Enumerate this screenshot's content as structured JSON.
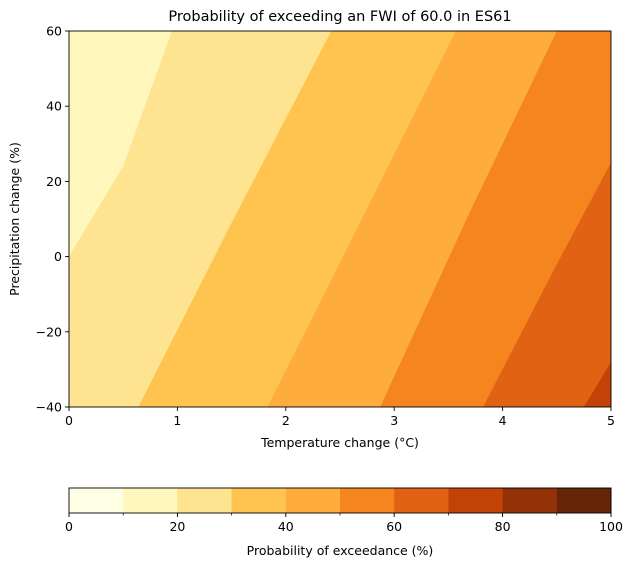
{
  "chart_data": {
    "type": "contourf",
    "title": "Probability of exceeding an FWI of 60.0 in ES61",
    "xlabel": "Temperature change (°C)",
    "ylabel": "Precipitation change (%)",
    "xlim": [
      0,
      5
    ],
    "ylim": [
      -40,
      60
    ],
    "x_ticks": [
      0,
      1,
      2,
      3,
      4,
      5
    ],
    "y_ticks": [
      -40,
      -20,
      0,
      20,
      40,
      60
    ],
    "x_tick_labels": [
      "0",
      "1",
      "2",
      "3",
      "4",
      "5"
    ],
    "y_tick_labels": [
      "−40",
      "−20",
      "0",
      "20",
      "40",
      "60"
    ],
    "levels": [
      0,
      10,
      20,
      30,
      40,
      50,
      60,
      70,
      80,
      90,
      100
    ],
    "level_colors": [
      "#ffffe5",
      "#fff7bc",
      "#fee391",
      "#fec44f",
      "#feac3c",
      "#f5861f",
      "#e06212",
      "#c24305",
      "#933206",
      "#662506"
    ],
    "contours": [
      {
        "level": 20,
        "points": [
          [
            0,
            0
          ],
          [
            0.5,
            24
          ],
          [
            0.95,
            60
          ]
        ]
      },
      {
        "level": 30,
        "points": [
          [
            0.64,
            -40
          ],
          [
            1.5,
            9
          ],
          [
            2.42,
            60
          ]
        ]
      },
      {
        "level": 40,
        "points": [
          [
            1.83,
            -40
          ],
          [
            2.7,
            10
          ],
          [
            3.57,
            60
          ]
        ]
      },
      {
        "level": 50,
        "points": [
          [
            2.87,
            -40
          ],
          [
            3.7,
            12
          ],
          [
            4.5,
            60
          ]
        ]
      },
      {
        "level": 60,
        "points": [
          [
            3.82,
            -40
          ],
          [
            4.5,
            -2
          ],
          [
            5,
            25
          ]
        ]
      },
      {
        "level": 70,
        "points": [
          [
            4.75,
            -40
          ],
          [
            5,
            -28
          ]
        ]
      }
    ],
    "colorbar": {
      "label": "Probability of exceedance (%)",
      "ticks": [
        0,
        20,
        40,
        60,
        80,
        100
      ],
      "tick_labels": [
        "0",
        "20",
        "40",
        "60",
        "80",
        "100"
      ]
    }
  }
}
